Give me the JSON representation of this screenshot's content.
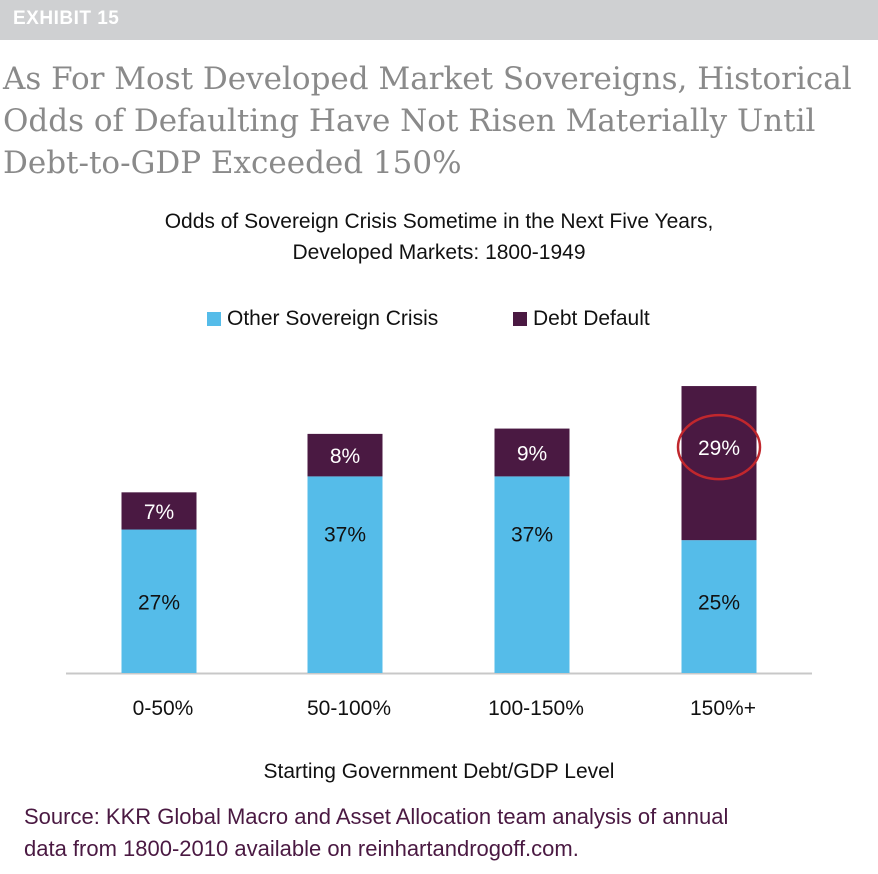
{
  "exhibit_label": "EXHIBIT 15",
  "headline_lines": [
    "As For Most Developed Market Sovereigns, Historical",
    "Odds of Defaulting Have Not Risen Materially Until",
    "Debt-to-GDP Exceeded 150%"
  ],
  "source_lines": [
    "Source: KKR Global Macro and Asset Allocation team analysis of annual",
    "data from 1800-2010 available on reinhartandrogoff.com."
  ],
  "colors": {
    "other_crisis": "#55bce9",
    "debt_default": "#4a1942",
    "highlight_circle": "#c0272d",
    "axis_line": "#c8c8c8"
  },
  "chart_data": {
    "type": "bar",
    "stacked": true,
    "title_lines": [
      "Odds of Sovereign Crisis Sometime in the Next Five Years,",
      "Developed Markets: 1800-1949"
    ],
    "xlabel": "Starting Government Debt/GDP Level",
    "ylabel": "",
    "ylim": [
      0,
      60
    ],
    "grid": false,
    "legend_position": "top-center",
    "categories": [
      "0-50%",
      "50-100%",
      "100-150%",
      "150%+"
    ],
    "series": [
      {
        "name": "Other Sovereign Crisis",
        "values": [
          27,
          37,
          37,
          25
        ],
        "labels": [
          "27%",
          "37%",
          "37%",
          "25%"
        ]
      },
      {
        "name": "Debt Default",
        "values": [
          7,
          8,
          9,
          29
        ],
        "labels": [
          "7%",
          "8%",
          "9%",
          "29%"
        ]
      }
    ],
    "highlight": {
      "series": "Debt Default",
      "category": "150%+",
      "shape": "circle"
    }
  }
}
